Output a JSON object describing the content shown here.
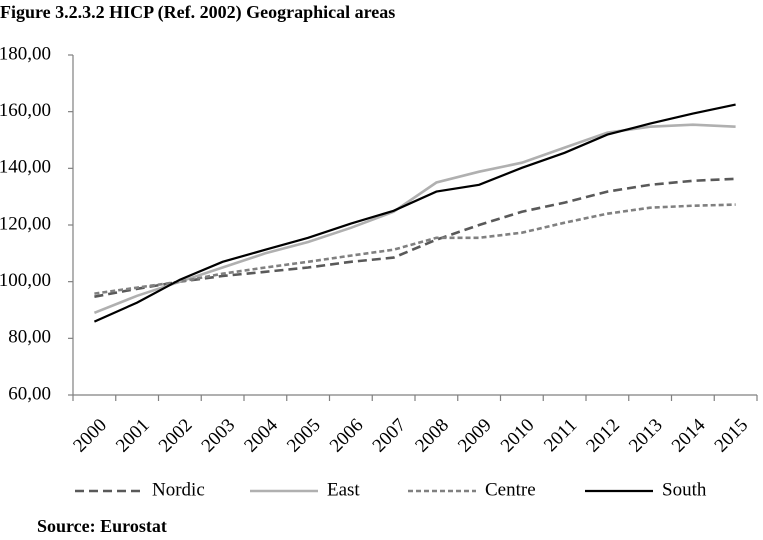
{
  "chart_data": {
    "type": "line",
    "title": "Figure 3.2.3.2 HICP (Ref. 2002) Geographical areas",
    "source": "Source: Eurostat",
    "categories": [
      "2000",
      "2001",
      "2002",
      "2003",
      "2004",
      "2005",
      "2006",
      "2007",
      "2008",
      "2009",
      "2010",
      "2011",
      "2012",
      "2013",
      "2014",
      "2015"
    ],
    "ylim": [
      60,
      180
    ],
    "yticks": [
      {
        "value": 60,
        "label": "60,00"
      },
      {
        "value": 80,
        "label": "80,00"
      },
      {
        "value": 100,
        "label": "100,00"
      },
      {
        "value": 120,
        "label": "120,00"
      },
      {
        "value": 140,
        "label": "140,00"
      },
      {
        "value": 160,
        "label": "160,00"
      },
      {
        "value": 180,
        "label": "180,00"
      }
    ],
    "grid": false,
    "legend": "bottom",
    "series": [
      {
        "name": "Nordic",
        "color": "#595959",
        "values": [
          94.7,
          97.5,
          100,
          102,
          103.5,
          105,
          107,
          108.5,
          114.8,
          120,
          124.7,
          127.9,
          131.8,
          134.2,
          135.6,
          136.3
        ]
      },
      {
        "name": "East",
        "color": "#b0b0b0",
        "values": [
          89,
          95,
          100,
          105,
          110,
          114,
          119,
          124.7,
          135,
          138.8,
          142,
          147.3,
          152.6,
          154.7,
          155.4,
          154.7
        ]
      },
      {
        "name": "Centre",
        "color": "#808080",
        "values": [
          95.8,
          97.9,
          100,
          102.8,
          105,
          107,
          109.2,
          111.3,
          115.5,
          115.5,
          117.3,
          120.8,
          124,
          126.1,
          126.8,
          127.2
        ]
      },
      {
        "name": "South",
        "color": "#000000",
        "values": [
          85.9,
          92.6,
          100.7,
          107,
          111.3,
          115.5,
          120.5,
          125,
          131.8,
          134.2,
          140.2,
          145.5,
          151.9,
          155.8,
          159.3,
          162.5
        ]
      }
    ]
  }
}
